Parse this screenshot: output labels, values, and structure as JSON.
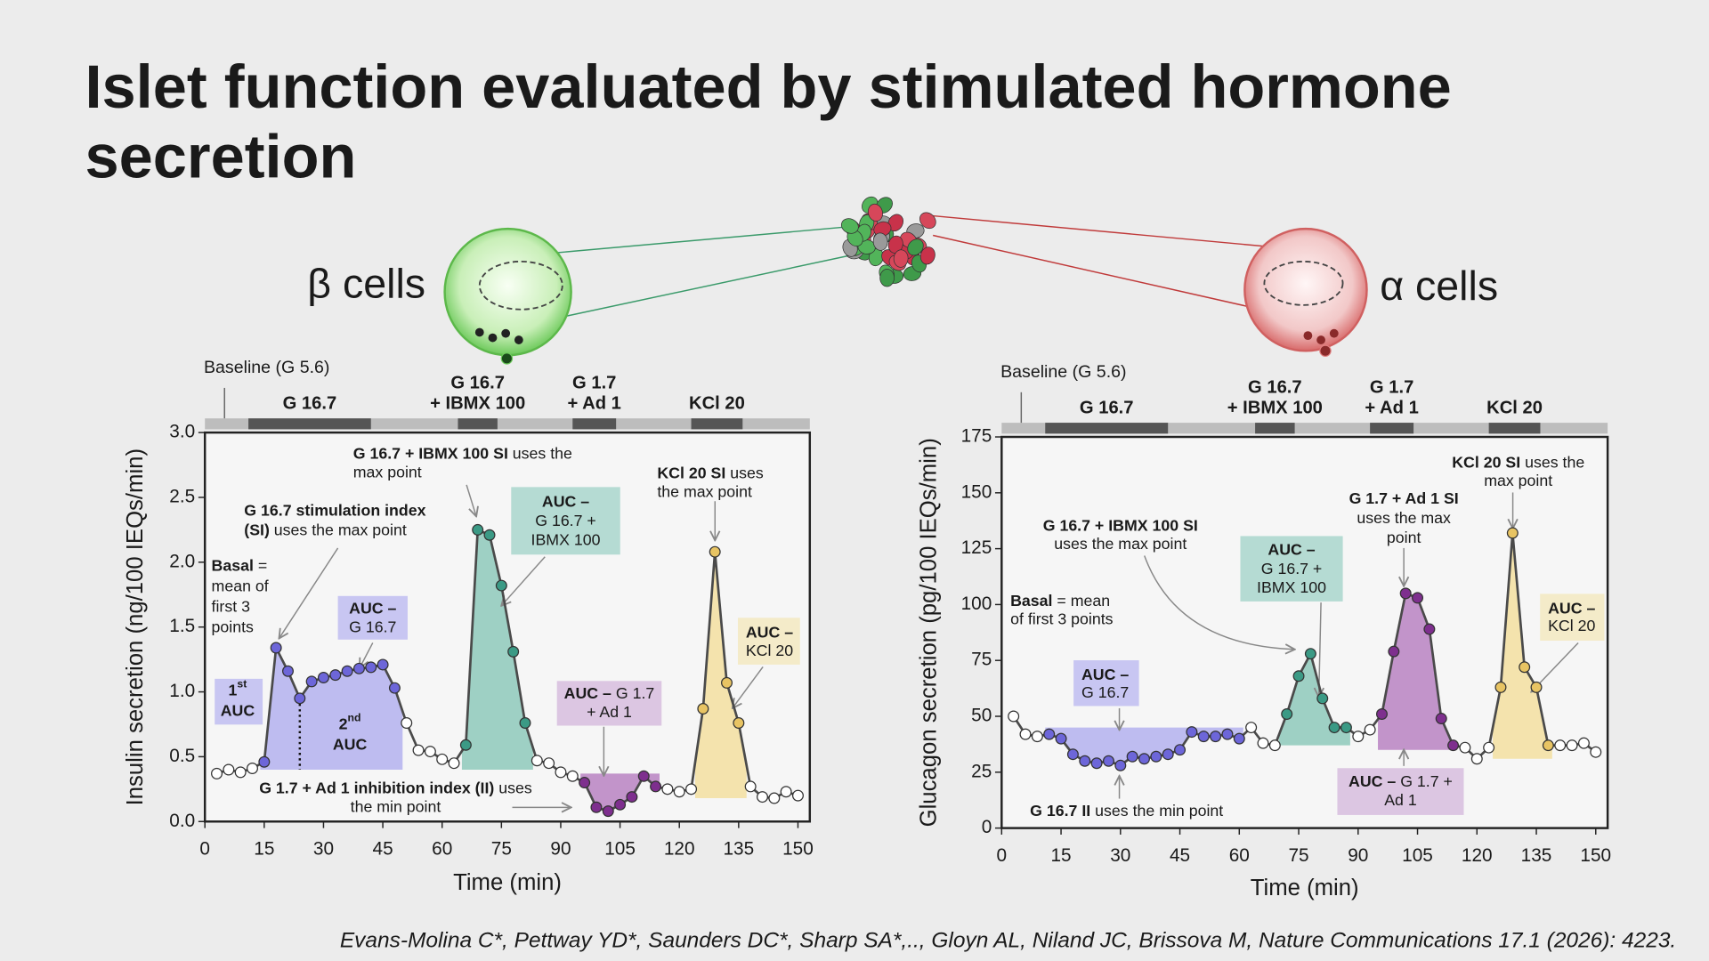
{
  "title": [
    "Islet function evaluated by stimulated hormone",
    "secretion"
  ],
  "cells": {
    "beta": "β cells",
    "alpha": "α cells"
  },
  "citation": "Evans-Molina C*, Pettway YD*, Saunders DC*, Sharp SA*,.., Gloyn AL, Niland JC, Brissova M, Nature Communications 17.1 (2026): 4223.",
  "chart_data": [
    {
      "type": "line",
      "y_label": "Insulin secretion (ng/100 IEQs/min)",
      "x_label": "Time (min)",
      "line_color": "#4a4a4a",
      "point_color": "#ffffff",
      "xlim": [
        0,
        153
      ],
      "ylim": [
        0,
        3
      ],
      "xticks": [
        0,
        15,
        30,
        45,
        60,
        75,
        90,
        105,
        120,
        135,
        150
      ],
      "yticks": [
        {
          "value": 0,
          "label": "0.0"
        },
        0.5,
        {
          "value": 1,
          "label": "1.0"
        },
        1.5,
        {
          "value": 2,
          "label": "2.0"
        },
        2.5,
        {
          "value": 3,
          "label": "3.0"
        }
      ],
      "x": [
        3,
        6,
        9,
        12,
        15,
        18,
        21,
        24,
        27,
        30,
        33,
        36,
        39,
        42,
        45,
        48,
        51,
        54,
        57,
        60,
        63,
        66,
        69,
        72,
        75,
        78,
        81,
        84,
        87,
        90,
        93,
        96,
        99,
        102,
        105,
        108,
        111,
        114,
        117,
        120,
        123,
        126,
        129,
        132,
        135,
        138,
        141,
        144,
        147,
        150
      ],
      "values": [
        0.37,
        0.4,
        0.38,
        0.41,
        0.46,
        1.34,
        1.16,
        0.95,
        1.08,
        1.11,
        1.13,
        1.16,
        1.18,
        1.19,
        1.21,
        1.03,
        0.76,
        0.55,
        0.54,
        0.48,
        0.45,
        0.59,
        2.25,
        2.21,
        1.82,
        1.31,
        0.76,
        0.47,
        0.45,
        0.38,
        0.35,
        0.3,
        0.11,
        0.08,
        0.13,
        0.19,
        0.35,
        0.27,
        0.25,
        0.23,
        0.25,
        0.87,
        2.08,
        1.07,
        0.76,
        0.27,
        0.19,
        0.18,
        0.23,
        0.2
      ],
      "baseline_label": "Baseline (G 5.6)",
      "protocol": [
        {
          "lines": [
            "G 16.7"
          ],
          "x": [
            11,
            42
          ]
        },
        {
          "lines": [
            "G 16.7",
            "+ IBMX 100"
          ],
          "x": [
            64,
            74
          ]
        },
        {
          "lines": [
            "G 1.7",
            "+ Ad 1"
          ],
          "x": [
            93,
            104
          ]
        },
        {
          "lines": [
            "KCl 20"
          ],
          "x": [
            123,
            136
          ]
        }
      ],
      "regions": [
        {
          "x": [
            14,
            24
          ],
          "base": 0.4,
          "color": "#b4b1ee",
          "point_color": "#6d66d9"
        },
        {
          "x": [
            24,
            50
          ],
          "base": 0.4,
          "color": "#b4b1ee",
          "point_color": "#6d66d9"
        },
        {
          "x": [
            65,
            83
          ],
          "base": 0.4,
          "color": "#8ec9bb",
          "point_color": "#3b9a85"
        },
        {
          "x": [
            95,
            115
          ],
          "base": 0.37,
          "color": "#b983c2",
          "point_color": "#7e2f8e"
        },
        {
          "x": [
            124,
            137
          ],
          "base": 0.18,
          "color": "#f3dfa0",
          "point_color": "#e8c463"
        }
      ],
      "annotations": [
        {
          "lines": [
            [
              {
                "b": "G 16.7 stimulation index"
              }
            ],
            [
              {
                "b": "(SI)"
              },
              {
                "r": " uses the max point"
              }
            ]
          ]
        },
        {
          "lines": [
            [
              {
                "b": "G 16.7 + IBMX 100 SI"
              },
              {
                "r": " uses the"
              }
            ],
            [
              {
                "r": "max point"
              }
            ]
          ]
        },
        {
          "lines": [
            [
              {
                "b": "KCl 20 SI"
              },
              {
                "r": " uses"
              }
            ],
            [
              {
                "r": "the max point"
              }
            ]
          ]
        },
        {
          "lines": [
            [
              {
                "b": "Basal"
              },
              {
                "r": " ="
              }
            ],
            [
              {
                "r": "mean of"
              }
            ],
            [
              {
                "r": "first 3"
              }
            ],
            [
              {
                "r": "points"
              }
            ]
          ]
        },
        {
          "lines": [
            [
              {
                "b": "G 1.7 + Ad 1 inhibition index (II)"
              },
              {
                "r": " uses"
              }
            ],
            [
              {
                "r": "the min point"
              }
            ]
          ]
        },
        {
          "lines": [
            [
              {
                "b": "1"
              },
              {
                "sup": "st"
              }
            ],
            [
              {
                "b": "AUC"
              }
            ]
          ],
          "fill": "#c8c6f2"
        },
        {
          "lines": [
            [
              {
                "b": "2"
              },
              {
                "sup": "nd"
              }
            ],
            [
              {
                "b": "AUC"
              }
            ]
          ]
        },
        {
          "lines": [
            [
              {
                "b": "AUC –"
              }
            ],
            [
              {
                "r": "G 16.7"
              }
            ]
          ],
          "fill": "#c8c6f2"
        },
        {
          "lines": [
            [
              {
                "b": "AUC –"
              }
            ],
            [
              {
                "r": "G 16.7 +"
              }
            ],
            [
              {
                "r": "IBMX 100"
              }
            ]
          ],
          "fill": "#b5dbd3"
        },
        {
          "lines": [
            [
              {
                "b": "AUC –"
              },
              {
                "r": " G 1.7"
              }
            ],
            [
              {
                "r": "+ Ad 1"
              }
            ]
          ],
          "fill": "#dcc6e2"
        },
        {
          "lines": [
            [
              {
                "b": "AUC –"
              }
            ],
            [
              {
                "r": "KCl 20"
              }
            ]
          ],
          "fill": "#f4ebc9"
        }
      ]
    },
    {
      "type": "line",
      "y_label": "Glucagon secretion (pg/100 IEQs/min)",
      "x_label": "Time (min)",
      "line_color": "#4a4a4a",
      "point_color": "#ffffff",
      "xlim": [
        0,
        153
      ],
      "ylim": [
        0,
        175
      ],
      "xticks": [
        0,
        15,
        30,
        45,
        60,
        75,
        90,
        105,
        120,
        135,
        150
      ],
      "yticks": [
        0,
        25,
        50,
        75,
        100,
        125,
        150,
        175
      ],
      "x": [
        3,
        6,
        9,
        12,
        15,
        18,
        21,
        24,
        27,
        30,
        33,
        36,
        39,
        42,
        45,
        48,
        51,
        54,
        57,
        60,
        63,
        66,
        69,
        72,
        75,
        78,
        81,
        84,
        87,
        90,
        93,
        96,
        99,
        102,
        105,
        108,
        111,
        114,
        117,
        120,
        123,
        126,
        129,
        132,
        135,
        138,
        141,
        144,
        147,
        150
      ],
      "values": [
        50,
        42,
        41,
        42,
        40,
        33,
        30,
        29,
        30,
        28,
        32,
        31,
        32,
        33,
        35,
        43,
        41,
        41,
        42,
        40,
        45,
        38,
        37,
        51,
        68,
        78,
        58,
        45,
        45,
        41,
        44,
        51,
        79,
        105,
        103,
        89,
        49,
        37,
        36,
        31,
        36,
        63,
        132,
        72,
        63,
        37,
        37,
        37,
        38,
        34
      ],
      "baseline_label": "Baseline (G 5.6)",
      "protocol": [
        {
          "lines": [
            "G 16.7"
          ],
          "x": [
            11,
            42
          ]
        },
        {
          "lines": [
            "G 16.7",
            "+ IBMX 100"
          ],
          "x": [
            64,
            74
          ]
        },
        {
          "lines": [
            "G 1.7",
            "+ Ad 1"
          ],
          "x": [
            93,
            104
          ]
        },
        {
          "lines": [
            "KCl 20"
          ],
          "x": [
            123,
            136
          ]
        }
      ],
      "regions": [
        {
          "x": [
            11,
            61
          ],
          "base": 45,
          "color": "#b4b1ee",
          "point_color": "#6d66d9"
        },
        {
          "x": [
            70,
            88
          ],
          "base": 37,
          "color": "#8ec9bb",
          "point_color": "#3b9a85"
        },
        {
          "x": [
            95,
            115
          ],
          "base": 35,
          "color": "#b983c2",
          "point_color": "#7e2f8e"
        },
        {
          "x": [
            124,
            139
          ],
          "base": 31,
          "color": "#f3dfa0",
          "point_color": "#e8c463"
        }
      ],
      "annotations": [
        {
          "lines": [
            [
              {
                "b": "G 16.7 + IBMX 100 SI"
              }
            ],
            [
              {
                "r": "uses the max point"
              }
            ]
          ]
        },
        {
          "lines": [
            [
              {
                "b": "Basal"
              },
              {
                "r": " = mean"
              }
            ],
            [
              {
                "r": "of first 3 points"
              }
            ]
          ]
        },
        {
          "lines": [
            [
              {
                "b": "AUC –"
              }
            ],
            [
              {
                "r": "G 16.7"
              }
            ]
          ],
          "fill": "#c8c6f2"
        },
        {
          "lines": [
            [
              {
                "b": "AUC –"
              }
            ],
            [
              {
                "r": "G 16.7 +"
              }
            ],
            [
              {
                "r": "IBMX 100"
              }
            ]
          ],
          "fill": "#b5dbd3"
        },
        {
          "lines": [
            [
              {
                "b": "G 1.7 + Ad 1 SI"
              }
            ],
            [
              {
                "r": "uses the max"
              }
            ],
            [
              {
                "r": "point"
              }
            ]
          ]
        },
        {
          "lines": [
            [
              {
                "b": "KCl 20 SI"
              },
              {
                "r": " uses the"
              }
            ],
            [
              {
                "r": "max point"
              }
            ]
          ]
        },
        {
          "lines": [
            [
              {
                "b": "AUC –"
              }
            ],
            [
              {
                "r": "KCl 20"
              }
            ]
          ],
          "fill": "#f4ebc9"
        },
        {
          "lines": [
            [
              {
                "b": "AUC –"
              },
              {
                "r": " G 1.7 +"
              }
            ],
            [
              {
                "r": "Ad 1"
              }
            ]
          ],
          "fill": "#dcc6e2"
        },
        {
          "lines": [
            [
              {
                "b": "G 16.7 II"
              },
              {
                "r": " uses the min point"
              }
            ]
          ]
        }
      ]
    }
  ]
}
